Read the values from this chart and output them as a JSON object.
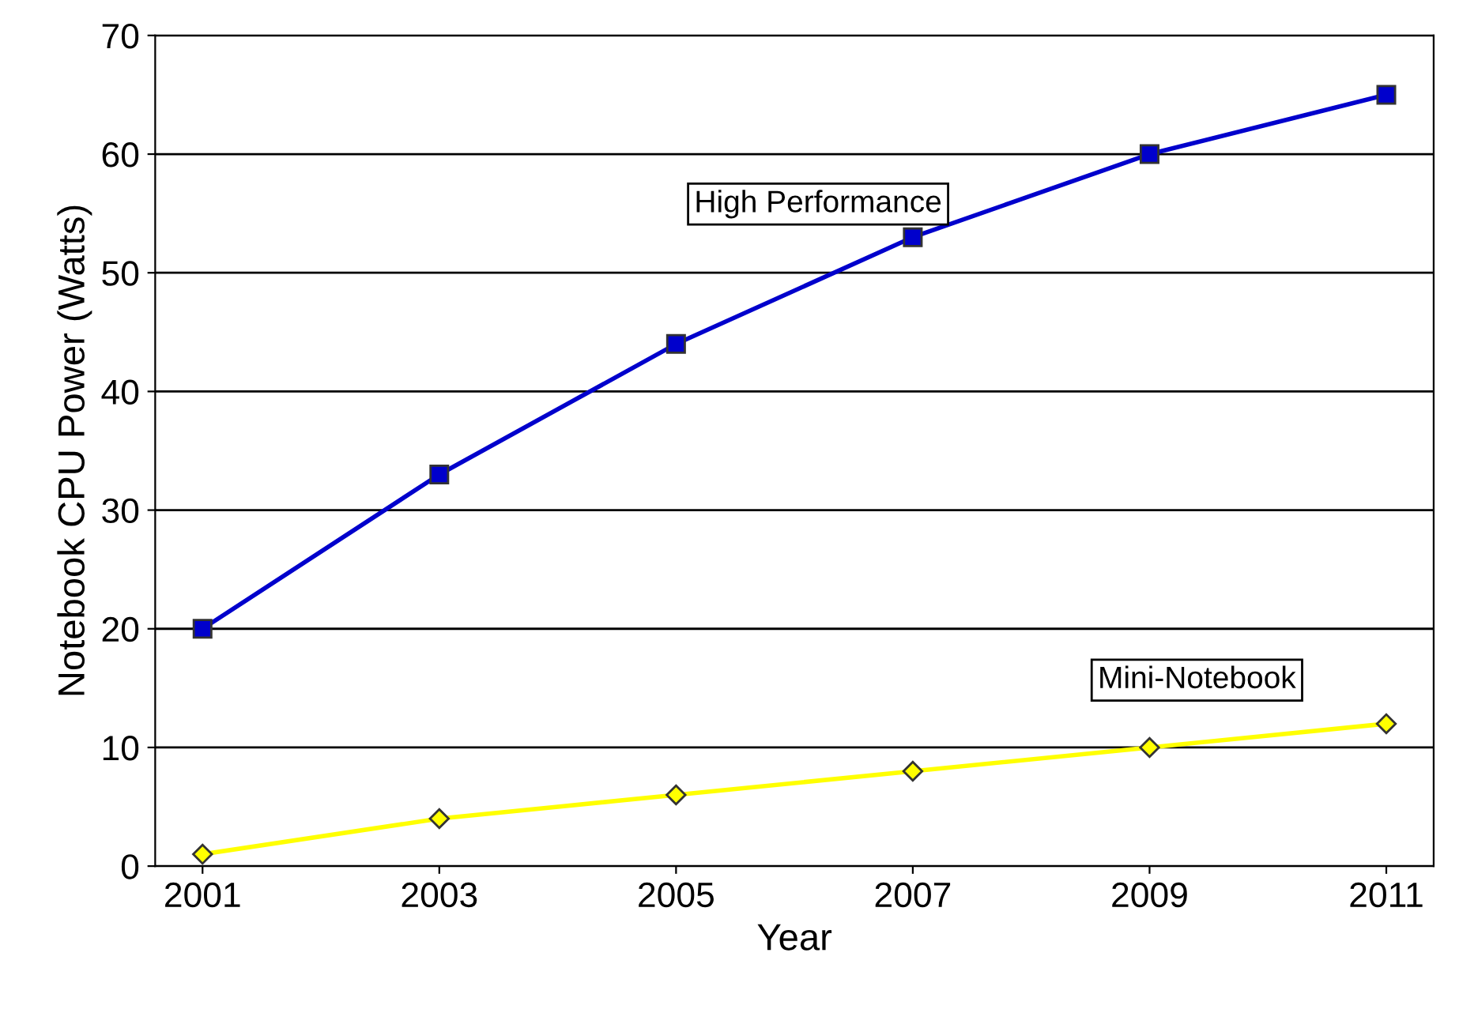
{
  "chart_data": {
    "type": "line",
    "xlabel": "Year",
    "ylabel": "Notebook CPU Power (Watts)",
    "categories": [
      "2001",
      "2003",
      "2005",
      "2007",
      "2009",
      "2011"
    ],
    "series": [
      {
        "name": "High Performance",
        "color": "#0000cc",
        "marker": "square",
        "values": [
          20,
          33,
          44,
          53,
          60,
          65
        ]
      },
      {
        "name": "Mini-Notebook",
        "color": "#ffff00",
        "marker": "diamond",
        "values": [
          1,
          4,
          6,
          8,
          10,
          12
        ]
      }
    ],
    "ylim": [
      0,
      70
    ],
    "yticks": [
      0,
      10,
      20,
      30,
      40,
      50,
      60,
      70
    ],
    "grid": "y",
    "legend": false,
    "line_style": "solid"
  }
}
